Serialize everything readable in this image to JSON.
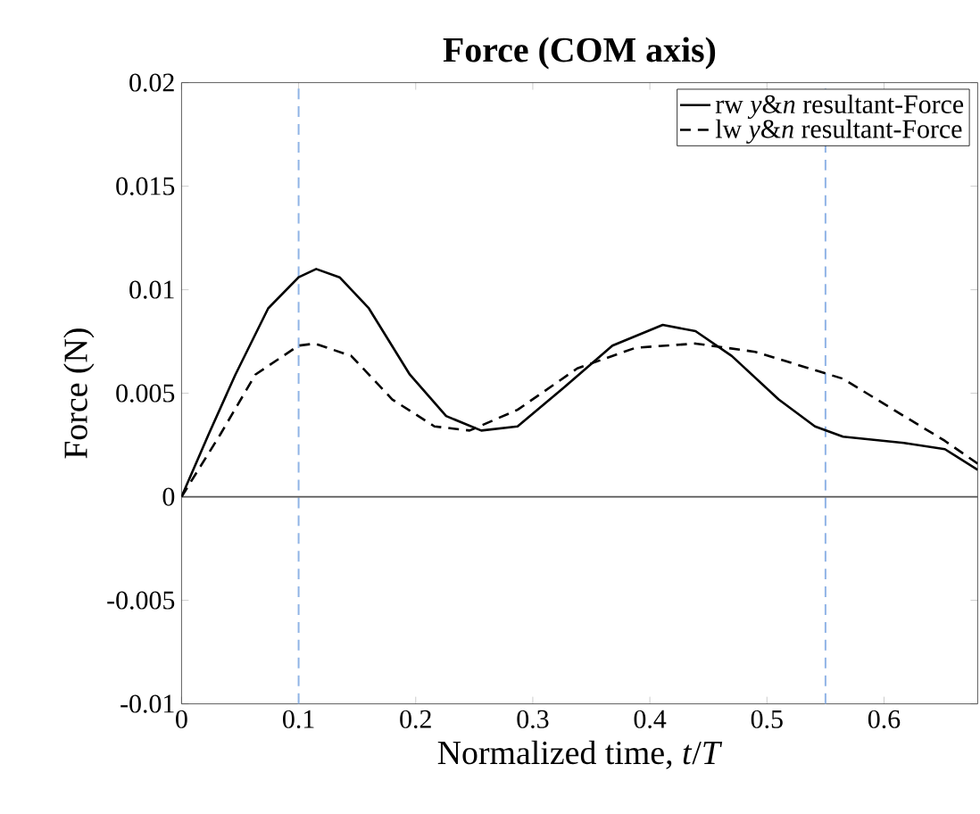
{
  "chart_data": {
    "type": "line",
    "title": "Force (COM axis)",
    "xlabel": "Normalized time, *t*/*T*",
    "ylabel": "Force (N)",
    "xlim": [
      0,
      0.68
    ],
    "ylim": [
      -0.01,
      0.02
    ],
    "xticks": [
      0,
      0.1,
      0.2,
      0.3,
      0.4,
      0.5,
      0.6
    ],
    "yticks": [
      -0.01,
      -0.005,
      0,
      0.005,
      0.01,
      0.015,
      0.02
    ],
    "legend": "top right",
    "grid": false,
    "series": [
      {
        "name": "rw *y*&*n* resultant-Force",
        "color": "#000000",
        "line_style": "solid",
        "x": [
          0,
          0.023,
          0.046,
          0.074,
          0.1,
          0.115,
          0.135,
          0.16,
          0.195,
          0.226,
          0.256,
          0.287,
          0.327,
          0.368,
          0.411,
          0.439,
          0.47,
          0.51,
          0.541,
          0.565,
          0.617,
          0.652,
          0.68
        ],
        "values": [
          0,
          0.003,
          0.0059,
          0.0091,
          0.0106,
          0.011,
          0.0106,
          0.0091,
          0.0059,
          0.0039,
          0.0032,
          0.0034,
          0.0053,
          0.0073,
          0.0083,
          0.008,
          0.0068,
          0.0047,
          0.0034,
          0.0029,
          0.0026,
          0.0023,
          0.0013
        ]
      },
      {
        "name": "lw *y*&*n* resultant-Force",
        "color": "#000000",
        "line_style": "dashed",
        "x": [
          0,
          0.033,
          0.063,
          0.1,
          0.114,
          0.145,
          0.18,
          0.216,
          0.246,
          0.287,
          0.338,
          0.388,
          0.439,
          0.49,
          0.565,
          0.617,
          0.652,
          0.68
        ],
        "values": [
          0,
          0.003,
          0.0059,
          0.0073,
          0.0074,
          0.0068,
          0.0047,
          0.0034,
          0.0032,
          0.0042,
          0.0062,
          0.0072,
          0.0074,
          0.007,
          0.0057,
          0.0039,
          0.0027,
          0.0016
        ]
      }
    ],
    "ref_lines": [
      {
        "axis": "x",
        "value": 0.1,
        "color": "#90b4e6",
        "line_style": "dashed"
      },
      {
        "axis": "x",
        "value": 0.55,
        "color": "#90b4e6",
        "line_style": "dashed"
      },
      {
        "axis": "y",
        "value": 0,
        "color": "#555555",
        "line_style": "solid"
      }
    ]
  }
}
